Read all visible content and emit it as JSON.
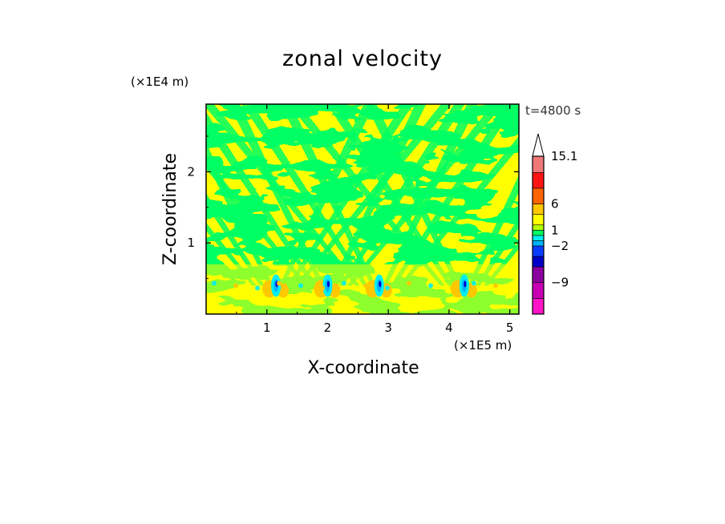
{
  "chart_data": {
    "type": "heatmap",
    "title": "zonal velocity",
    "xlabel": "X-coordinate",
    "ylabel": "Z-coordinate",
    "x_unit_label": "(×1E5 m)",
    "y_unit_label": "(×1E4 m)",
    "time_label": "t=4800 s",
    "xlim": [
      0,
      5.15
    ],
    "ylim": [
      0,
      2.95
    ],
    "x_ticks": [
      1,
      2,
      3,
      4,
      5
    ],
    "x_tick_labels": [
      "1",
      "2",
      "3",
      "4",
      "5"
    ],
    "y_ticks": [
      1,
      2
    ],
    "y_tick_labels": [
      "1",
      "2"
    ],
    "colorbar": {
      "levels": [
        -15,
        -12,
        -9,
        -6,
        -4,
        -2,
        -1,
        0,
        1,
        2,
        4,
        6,
        9,
        12,
        15.1
      ],
      "colors": [
        "#ff14c8",
        "#c800b4",
        "#8c00a0",
        "#0000c8",
        "#0a3cff",
        "#00b4ff",
        "#00f0f0",
        "#00ff64",
        "#b4ff00",
        "#ffff00",
        "#ffc800",
        "#ff6400",
        "#ff1414",
        "#f07878",
        "#ffb4b4"
      ],
      "labels": [
        {
          "value": 15.1,
          "text": "15.1"
        },
        {
          "value": 6,
          "text": "6"
        },
        {
          "value": 1,
          "text": "1"
        },
        {
          "value": -2,
          "text": "−2"
        },
        {
          "value": -9,
          "text": "−9"
        }
      ],
      "overflow_triangle": true
    },
    "grid": false,
    "legend": "colorbar-right",
    "field_description": {
      "dominant_values": [
        "0 to 1 (green)",
        "1 to 2 (yellow)"
      ],
      "anomaly_columns_x": [
        1.15,
        2.0,
        2.85,
        4.25
      ],
      "anomaly_level_z": 0.4
    }
  }
}
